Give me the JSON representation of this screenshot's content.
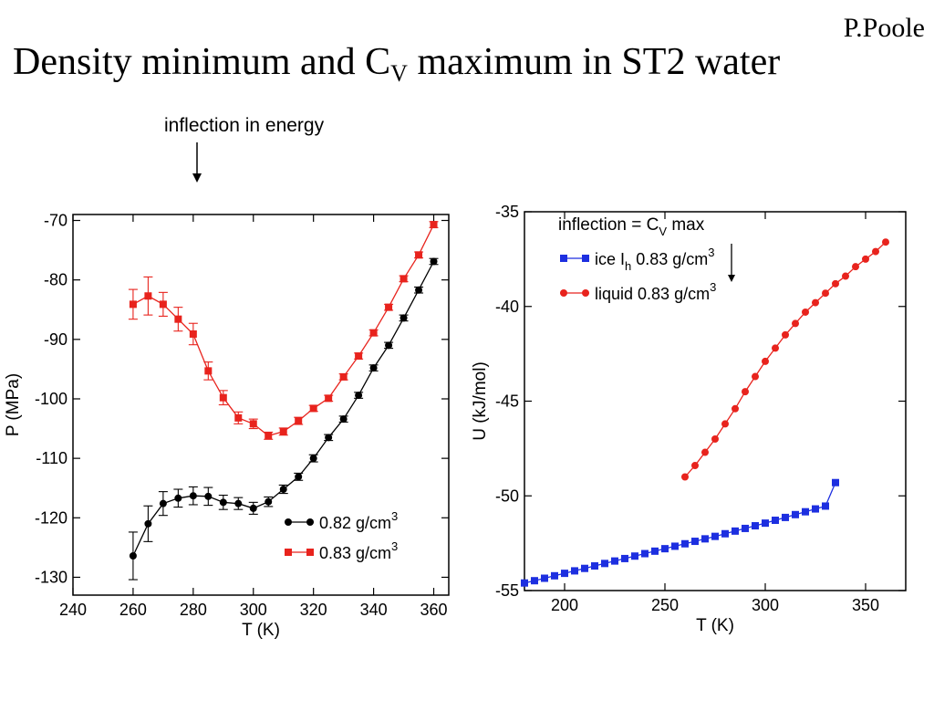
{
  "slide": {
    "author": "P.Poole",
    "title_main": "Density minimum and C",
    "title_sub": "V",
    "title_rest": " maximum in ST2 water",
    "annotation": "inflection in energy"
  },
  "chart_data": [
    {
      "type": "line",
      "xlabel": "T (K)",
      "ylabel": "P (MPa)",
      "xlim": [
        240,
        365
      ],
      "ylim": [
        -133,
        -69
      ],
      "xticks": [
        240,
        260,
        280,
        300,
        320,
        340,
        360
      ],
      "yticks": [
        -130,
        -120,
        -110,
        -100,
        -90,
        -80,
        -70
      ],
      "legend_position": "bottom-right",
      "series": [
        {
          "name": "0.82 g/cm",
          "name_sup": "3",
          "color": "#000000",
          "marker": "circle",
          "x": [
            260,
            265,
            270,
            275,
            280,
            285,
            290,
            295,
            300,
            305,
            310,
            315,
            320,
            325,
            330,
            335,
            340,
            345,
            350,
            355,
            360
          ],
          "y": [
            -126.4,
            -121.0,
            -117.6,
            -116.7,
            -116.3,
            -116.4,
            -117.4,
            -117.6,
            -118.4,
            -117.3,
            -115.2,
            -113.1,
            -110.0,
            -106.5,
            -103.4,
            -99.4,
            -94.8,
            -91.0,
            -86.4,
            -81.7,
            -76.9
          ],
          "err": [
            4.0,
            3.0,
            2.0,
            1.5,
            1.5,
            1.5,
            1.2,
            1.0,
            1.0,
            0.8,
            0.7,
            0.6,
            0.6,
            0.5,
            0.5,
            0.5,
            0.5,
            0.5,
            0.5,
            0.5,
            0.5
          ]
        },
        {
          "name": "0.83 g/cm",
          "name_sup": "3",
          "color": "#e8231d",
          "marker": "square",
          "x": [
            260,
            265,
            270,
            275,
            280,
            285,
            290,
            295,
            300,
            305,
            310,
            315,
            320,
            325,
            330,
            335,
            340,
            345,
            350,
            355,
            360
          ],
          "y": [
            -84.1,
            -82.7,
            -84.1,
            -86.6,
            -89.1,
            -95.3,
            -99.8,
            -103.2,
            -104.2,
            -106.2,
            -105.5,
            -103.7,
            -101.6,
            -99.9,
            -96.3,
            -92.8,
            -88.9,
            -84.6,
            -79.8,
            -75.8,
            -70.7
          ],
          "err": [
            2.5,
            3.2,
            2.0,
            2.0,
            1.8,
            1.5,
            1.2,
            1.0,
            0.8,
            0.6,
            0.6,
            0.6,
            0.5,
            0.5,
            0.5,
            0.5,
            0.5,
            0.5,
            0.5,
            0.5,
            0.5
          ]
        }
      ]
    },
    {
      "type": "line",
      "xlabel": "T (K)",
      "ylabel": "U (kJ/mol)",
      "xlim": [
        180,
        370
      ],
      "ylim": [
        -55,
        -35
      ],
      "xticks": [
        200,
        250,
        300,
        350
      ],
      "yticks": [
        -55,
        -50,
        -45,
        -40,
        -35
      ],
      "legend_position": "top-left",
      "legend_title_main": "inflection = C",
      "legend_title_sub": "V",
      "legend_title_rest": " max",
      "series": [
        {
          "name_main": "ice I",
          "name_sub": "h",
          "name_rest": " 0.83 g/cm",
          "name_sup": "3",
          "color": "#1d2fe0",
          "marker": "square",
          "x": [
            180,
            185,
            190,
            195,
            200,
            205,
            210,
            215,
            220,
            225,
            230,
            235,
            240,
            245,
            250,
            255,
            260,
            265,
            270,
            275,
            280,
            285,
            290,
            295,
            300,
            305,
            310,
            315,
            320,
            325,
            330,
            335
          ],
          "y": [
            -54.6,
            -54.48,
            -54.35,
            -54.22,
            -54.09,
            -53.96,
            -53.83,
            -53.7,
            -53.57,
            -53.44,
            -53.31,
            -53.18,
            -53.05,
            -52.92,
            -52.79,
            -52.66,
            -52.53,
            -52.4,
            -52.27,
            -52.14,
            -52.0,
            -51.86,
            -51.72,
            -51.58,
            -51.44,
            -51.29,
            -51.14,
            -50.99,
            -50.84,
            -50.69,
            -50.54,
            -49.3
          ]
        },
        {
          "name": "liquid 0.83 g/cm",
          "name_sup": "3",
          "color": "#e8231d",
          "marker": "circle",
          "x": [
            260,
            265,
            270,
            275,
            280,
            285,
            290,
            295,
            300,
            305,
            310,
            315,
            320,
            325,
            330,
            335,
            340,
            345,
            350,
            355,
            360
          ],
          "y": [
            -49.0,
            -48.4,
            -47.7,
            -47.0,
            -46.2,
            -45.4,
            -44.5,
            -43.7,
            -42.9,
            -42.2,
            -41.5,
            -40.9,
            -40.3,
            -39.8,
            -39.3,
            -38.8,
            -38.4,
            -37.9,
            -37.5,
            -37.1,
            -36.6
          ]
        }
      ]
    }
  ]
}
